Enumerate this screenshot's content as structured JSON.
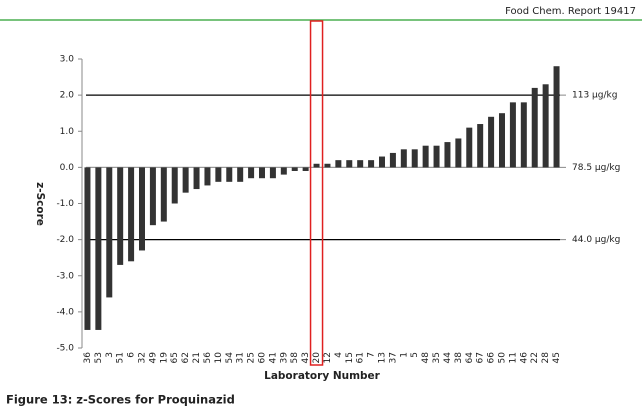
{
  "header": "Food Chem. Report 19417",
  "caption": "Figure 13: z-Scores for Proquinazid",
  "chart_data": {
    "type": "bar",
    "xlabel": "Laboratory Number",
    "ylabel": "z-Score",
    "categories": [
      "36",
      "53",
      "3",
      "51",
      "6",
      "32",
      "49",
      "19",
      "65",
      "62",
      "21",
      "56",
      "10",
      "54",
      "31",
      "25",
      "60",
      "41",
      "39",
      "58",
      "43",
      "20",
      "12",
      "4",
      "15",
      "61",
      "7",
      "13",
      "37",
      "1",
      "5",
      "48",
      "35",
      "44",
      "38",
      "64",
      "67",
      "66",
      "50",
      "11",
      "46",
      "22",
      "28",
      "45"
    ],
    "values": [
      -4.5,
      -4.5,
      -3.6,
      -2.7,
      -2.6,
      -2.3,
      -1.6,
      -1.5,
      -1.0,
      -0.7,
      -0.6,
      -0.5,
      -0.4,
      -0.4,
      -0.4,
      -0.3,
      -0.3,
      -0.3,
      -0.2,
      -0.1,
      -0.1,
      0.1,
      0.1,
      0.2,
      0.2,
      0.2,
      0.2,
      0.3,
      0.4,
      0.5,
      0.5,
      0.6,
      0.6,
      0.7,
      0.8,
      1.1,
      1.2,
      1.4,
      1.5,
      1.8,
      1.8,
      2.2,
      2.3,
      2.8
    ],
    "color": "#333333",
    "highlight": "20",
    "highlight_color": "#e02020",
    "ylim": [
      -5,
      3
    ],
    "yticks": [
      {
        "value": 3,
        "label": "3.0"
      },
      {
        "value": 2,
        "label": "2.0"
      },
      {
        "value": 1,
        "label": "1.0"
      },
      {
        "value": 0,
        "label": "0.0"
      },
      {
        "value": -1,
        "label": "-1.0"
      },
      {
        "value": -2,
        "label": "-2.0"
      },
      {
        "value": -3,
        "label": "-3.0"
      },
      {
        "value": -4,
        "label": "-4.0"
      },
      {
        "value": -5,
        "label": "-5.0"
      }
    ],
    "reference_lines": [
      {
        "value": 2,
        "label": "113 µg/kg"
      },
      {
        "value": 0,
        "label": "78.5 µg/kg"
      },
      {
        "value": -2,
        "label": "44.0 µg/kg"
      }
    ]
  }
}
